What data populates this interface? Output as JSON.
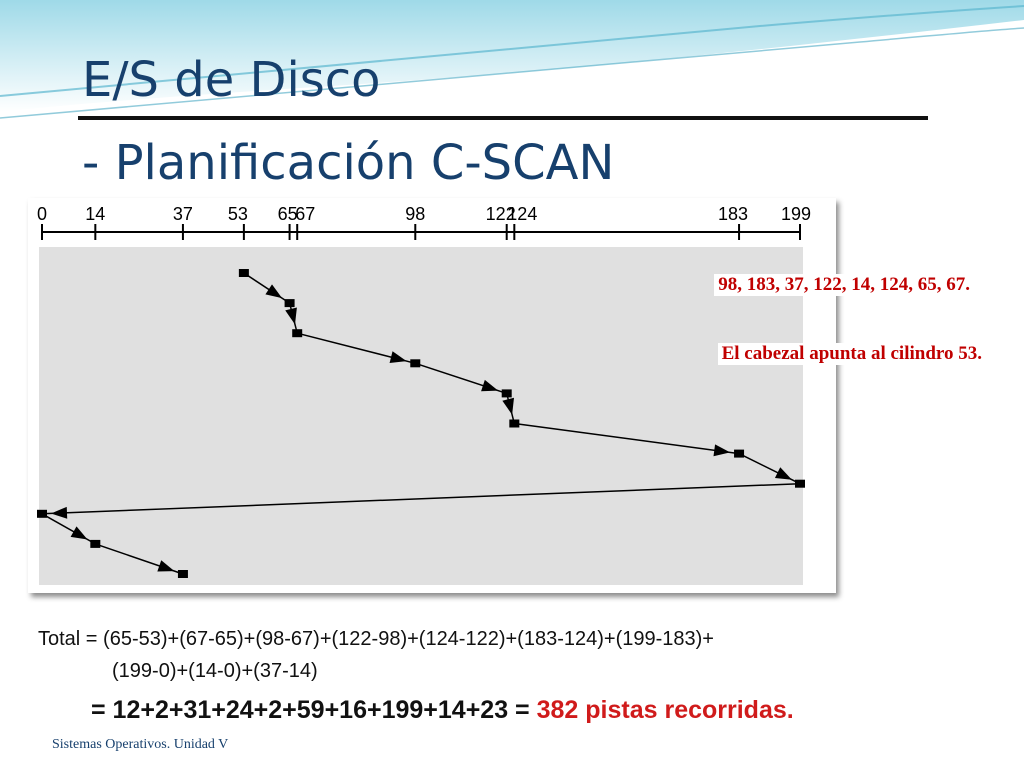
{
  "slide": {
    "title_line1": "E/S de Disco",
    "title_line2": "- Planificación C-SCAN",
    "footer": "Sistemas Operativos. Unidad V"
  },
  "chart_data": {
    "type": "line",
    "title": "",
    "axis": {
      "min": 0,
      "max": 199,
      "tick_labels": [
        0,
        14,
        37,
        53,
        65,
        67,
        98,
        122,
        124,
        183,
        199
      ]
    },
    "request_queue": "98, 183, 37, 122, 14, 124, 65, 67.",
    "head_note": "El cabezal apunta al cilindro 53.",
    "path": [
      53,
      65,
      67,
      98,
      122,
      124,
      183,
      199,
      0,
      14,
      37
    ]
  },
  "total": {
    "label": "Total = ",
    "expression_line1": "(65-53)+(67-65)+(98-67)+(122-98)+(124-122)+(183-124)+(199-183)+",
    "expression_line2": "(199-0)+(14-0)+(37-14)",
    "sum_prefix": "= 12+2+31+24+2+59+16+199+14+23 = ",
    "result": "382 pistas recorridas."
  },
  "colors": {
    "title": "#17406d",
    "accent": "#c00000",
    "panel": "#e0e0e0"
  }
}
